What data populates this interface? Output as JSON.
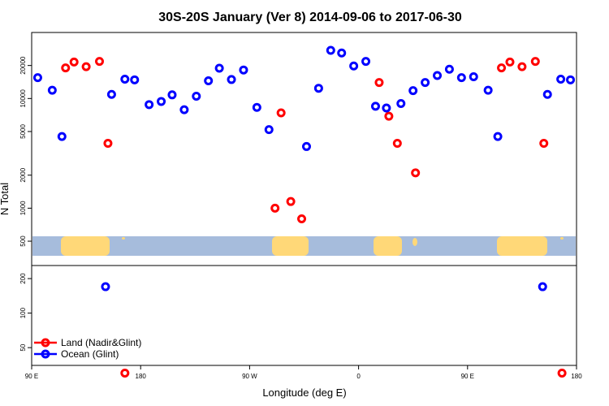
{
  "chart_data": {
    "type": "scatter",
    "title": "30S-20S January (Ver 8)   2014-09-06 to 2017-06-30",
    "xlabel": "Longitude (deg E)",
    "ylabel": "N Total",
    "x_ticks": [
      {
        "value": 0,
        "label": "90 E"
      },
      {
        "value": 90,
        "label": "180"
      },
      {
        "value": 180,
        "label": "90 W"
      },
      {
        "value": 270,
        "label": "0"
      },
      {
        "value": 360,
        "label": "90 E"
      },
      {
        "value": 450,
        "label": "180"
      }
    ],
    "xlim": [
      0,
      450
    ],
    "top_panel": {
      "yscale": "log",
      "ylim": [
        300,
        40000
      ],
      "y_ticks": [
        500,
        1000,
        2000,
        5000,
        10000,
        20000
      ],
      "series": [
        {
          "name": "Land (Nadir&Glint)",
          "color": "#ff0000",
          "points": [
            [
              28,
              19000
            ],
            [
              35,
              21500
            ],
            [
              45,
              19500
            ],
            [
              56,
              21800
            ],
            [
              63,
              3900
            ],
            [
              201,
              1000
            ],
            [
              206,
              7400
            ],
            [
              214,
              1150
            ],
            [
              223,
              800
            ],
            [
              287,
              14000
            ],
            [
              295,
              6900
            ],
            [
              302,
              3900
            ],
            [
              317,
              2100
            ],
            [
              388,
              19000
            ],
            [
              395,
              21500
            ],
            [
              405,
              19500
            ],
            [
              416,
              21800
            ],
            [
              423,
              3900
            ]
          ]
        },
        {
          "name": "Ocean (Glint)",
          "color": "#0000ff",
          "points": [
            [
              5,
              15500
            ],
            [
              17,
              11900
            ],
            [
              25,
              4500
            ],
            [
              66,
              10900
            ],
            [
              77,
              15000
            ],
            [
              85,
              14800
            ],
            [
              97,
              8800
            ],
            [
              107,
              9400
            ],
            [
              116,
              10800
            ],
            [
              126,
              7900
            ],
            [
              136,
              10500
            ],
            [
              146,
              14500
            ],
            [
              155,
              18900
            ],
            [
              165,
              14900
            ],
            [
              175,
              18200
            ],
            [
              186,
              8300
            ],
            [
              196,
              5200
            ],
            [
              227,
              3650
            ],
            [
              237,
              12400
            ],
            [
              247,
              27500
            ],
            [
              256,
              26000
            ],
            [
              266,
              19800
            ],
            [
              276,
              21800
            ],
            [
              284,
              8500
            ],
            [
              293,
              8200
            ],
            [
              305,
              9000
            ],
            [
              315,
              11800
            ],
            [
              325,
              14000
            ],
            [
              335,
              16200
            ],
            [
              345,
              18500
            ],
            [
              355,
              15500
            ],
            [
              365,
              15800
            ],
            [
              377,
              11900
            ],
            [
              385,
              4500
            ],
            [
              426,
              10900
            ],
            [
              437,
              15000
            ],
            [
              445,
              14800
            ]
          ]
        }
      ],
      "map_strip": {
        "ocean_color": "#a6bcdc",
        "land_color": "#ffd878"
      }
    },
    "bottom_panel": {
      "yscale": "log",
      "ylim": [
        35,
        260
      ],
      "y_ticks": [
        50,
        100,
        200
      ],
      "series": [
        {
          "name": "Land (Nadir&Glint)",
          "color": "#ff0000",
          "points": [
            [
              77,
              30
            ],
            [
              438,
              30
            ]
          ]
        },
        {
          "name": "Ocean (Glint)",
          "color": "#0000ff",
          "points": [
            [
              61,
              170
            ],
            [
              422,
              170
            ]
          ]
        }
      ]
    },
    "legend": {
      "position": "bottom-left",
      "entries": [
        "Land (Nadir&Glint)",
        "Ocean (Glint)"
      ]
    }
  }
}
